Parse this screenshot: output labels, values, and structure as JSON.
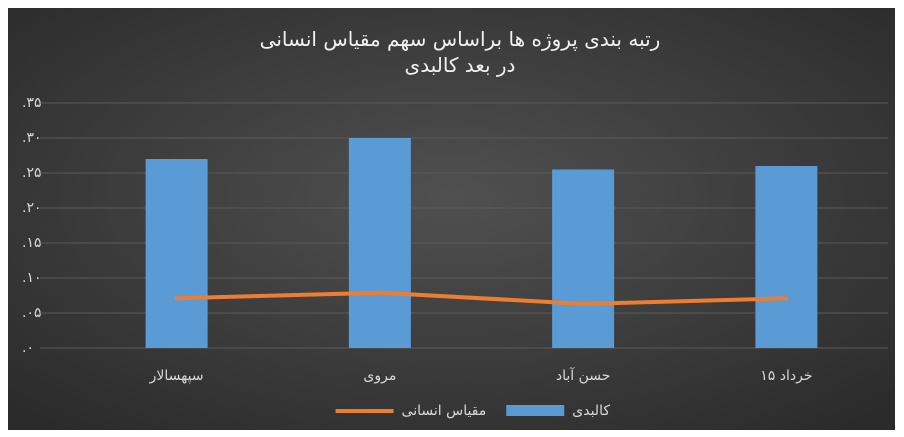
{
  "chart_data": {
    "type": "combo",
    "title": "رتبه بندی پروژه ها براساس سهم مقیاس انسانی در بعد کالبدی",
    "categories": [
      "سپهسالار",
      "مروی",
      "حسن آباد",
      "۱۵ خرداد"
    ],
    "series": [
      {
        "name": "کالبدی",
        "type": "bar",
        "color": "#5b9bd5",
        "values": [
          0.27,
          0.3,
          0.255,
          0.26
        ]
      },
      {
        "name": "مقیاس انسانی",
        "type": "line",
        "color": "#ed7d31",
        "values": [
          0.071,
          0.079,
          0.063,
          0.071
        ]
      }
    ],
    "ylim": [
      0,
      0.35
    ],
    "yticks": [
      {
        "value": 0,
        "label": ".۰"
      },
      {
        "value": 0.05,
        "label": ".۰۵"
      },
      {
        "value": 0.1,
        "label": ".۱۰"
      },
      {
        "value": 0.15,
        "label": ".۱۵"
      },
      {
        "value": 0.2,
        "label": ".۲۰"
      },
      {
        "value": 0.25,
        "label": ".۲۵"
      },
      {
        "value": 0.3,
        "label": ".۳۰"
      },
      {
        "value": 0.35,
        "label": ".۳۵"
      }
    ],
    "grid": true,
    "legend": "bottom"
  }
}
